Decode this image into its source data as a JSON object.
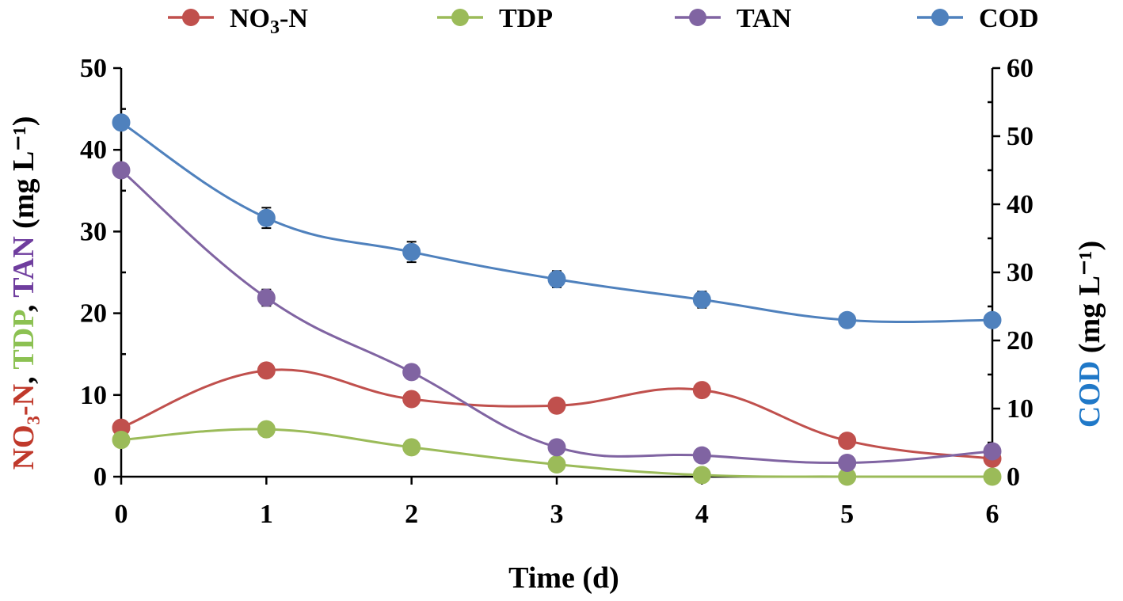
{
  "chart_data": {
    "type": "line",
    "title": "",
    "x": [
      0,
      1,
      2,
      3,
      4,
      5,
      6
    ],
    "xlabel": "Time (d)",
    "xlim": [
      0,
      6
    ],
    "xticks": [
      "0",
      "1",
      "2",
      "3",
      "4",
      "5",
      "6"
    ],
    "ylabel_left": {
      "parts": [
        {
          "text": "NO₃-N",
          "color": "#c0392b"
        },
        {
          "text": ", ",
          "color": "#000000"
        },
        {
          "text": "TDP",
          "color": "#8cc152"
        },
        {
          "text": ", ",
          "color": "#000000"
        },
        {
          "text": "TAN",
          "color": "#6f3d9e"
        },
        {
          "text": " (mg L⁻¹)",
          "color": "#000000"
        }
      ]
    },
    "ylim_left": [
      0,
      50
    ],
    "yticks_left": [
      "0",
      "10",
      "20",
      "30",
      "40",
      "50"
    ],
    "ylabel_right": {
      "parts": [
        {
          "text": "COD",
          "color": "#1f78c8"
        },
        {
          "text": " (mg L⁻¹)",
          "color": "#000000"
        }
      ]
    },
    "ylim_right": [
      0,
      60
    ],
    "yticks_right": [
      "0",
      "10",
      "20",
      "30",
      "40",
      "50",
      "60"
    ],
    "series": [
      {
        "name": "NO₃-N",
        "axis": "left",
        "line_color": "#c0504d",
        "marker_color": "#c0504d",
        "values": [
          6.0,
          13.0,
          9.5,
          8.7,
          10.6,
          4.4,
          2.2
        ],
        "errors": [
          0,
          0,
          0,
          0,
          0,
          0,
          0
        ]
      },
      {
        "name": "TDP",
        "axis": "left",
        "line_color": "#9bbb59",
        "marker_color": "#9bbb59",
        "values": [
          4.5,
          5.8,
          3.6,
          1.5,
          0.2,
          0.0,
          0.0
        ],
        "errors": [
          0,
          0,
          0,
          0,
          0,
          0,
          0
        ]
      },
      {
        "name": "TAN",
        "axis": "left",
        "line_color": "#8064a2",
        "marker_color": "#8064a2",
        "values": [
          37.5,
          21.9,
          12.8,
          3.6,
          2.6,
          1.7,
          3.1
        ],
        "errors": [
          0,
          1.0,
          0,
          0,
          0,
          0,
          0
        ]
      },
      {
        "name": "COD",
        "axis": "right",
        "line_color": "#4f81bd",
        "marker_color": "#4f81bd",
        "values": [
          52.0,
          38.0,
          33.0,
          29.0,
          26.0,
          23.0,
          23.0
        ],
        "errors": [
          0,
          1.5,
          1.5,
          1.2,
          1.2,
          1.0,
          0
        ]
      }
    ],
    "legend": [
      {
        "label_main": "NO",
        "label_sub": "3",
        "label_tail": "-N",
        "color": "#c0504d"
      },
      {
        "label_main": "TDP",
        "label_sub": "",
        "label_tail": "",
        "color": "#9bbb59"
      },
      {
        "label_main": "TAN",
        "label_sub": "",
        "label_tail": "",
        "color": "#8064a2"
      },
      {
        "label_main": "COD",
        "label_sub": "",
        "label_tail": "",
        "color": "#4f81bd"
      }
    ],
    "legend_position": "top",
    "grid": false
  }
}
